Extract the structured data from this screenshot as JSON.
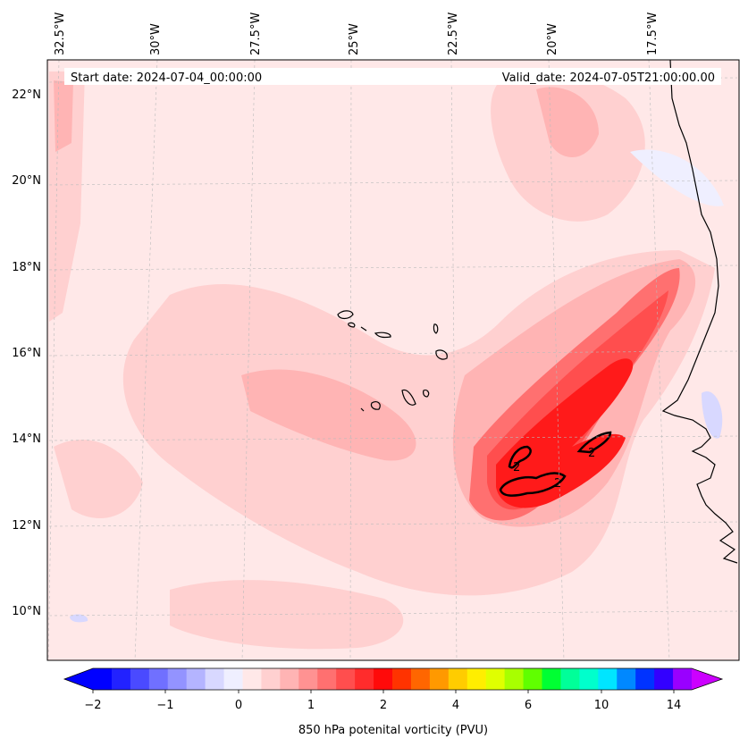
{
  "header": {
    "start_date": "Start date: 2024-07-04_00:00:00",
    "valid_date": "Valid_date: 2024-07-05T21:00:00.00"
  },
  "longitude_labels": [
    "32.5°W",
    "30°W",
    "27.5°W",
    "25°W",
    "22.5°W",
    "20°W",
    "17.5°W"
  ],
  "latitude_labels": [
    "22°N",
    "20°N",
    "18°N",
    "16°N",
    "14°N",
    "12°N",
    "10°N"
  ],
  "colorbar": {
    "title": "850 hPa potenital vorticity (PVU)",
    "tick_labels": [
      "−2",
      "−1",
      "0",
      "1",
      "2",
      "4",
      "6",
      "10",
      "14"
    ],
    "colors": [
      "#0000ff",
      "#2222ff",
      "#4a4aff",
      "#7070ff",
      "#9393ff",
      "#b4b4ff",
      "#d8d8ff",
      "#efefff",
      "#ffe8e8",
      "#ffd0d0",
      "#ffb4b4",
      "#ff9292",
      "#ff7070",
      "#ff4e4e",
      "#ff2c2c",
      "#ff0a0a",
      "#ff3300",
      "#ff6600",
      "#ff9900",
      "#ffcc00",
      "#ffee00",
      "#e0ff00",
      "#a8ff00",
      "#60ff00",
      "#00ff33",
      "#00ff99",
      "#00ffcc",
      "#00e5ff",
      "#0088ff",
      "#0033ff",
      "#3300ff",
      "#9900ff"
    ],
    "under_color": "#0000ff",
    "over_color": "#cc00ff"
  },
  "contour_labels": [
    "2",
    "2",
    "2"
  ],
  "colors": {
    "background_field": "#ffe8e8",
    "coastline": "#000000",
    "gridline": "#bbbbbb"
  }
}
